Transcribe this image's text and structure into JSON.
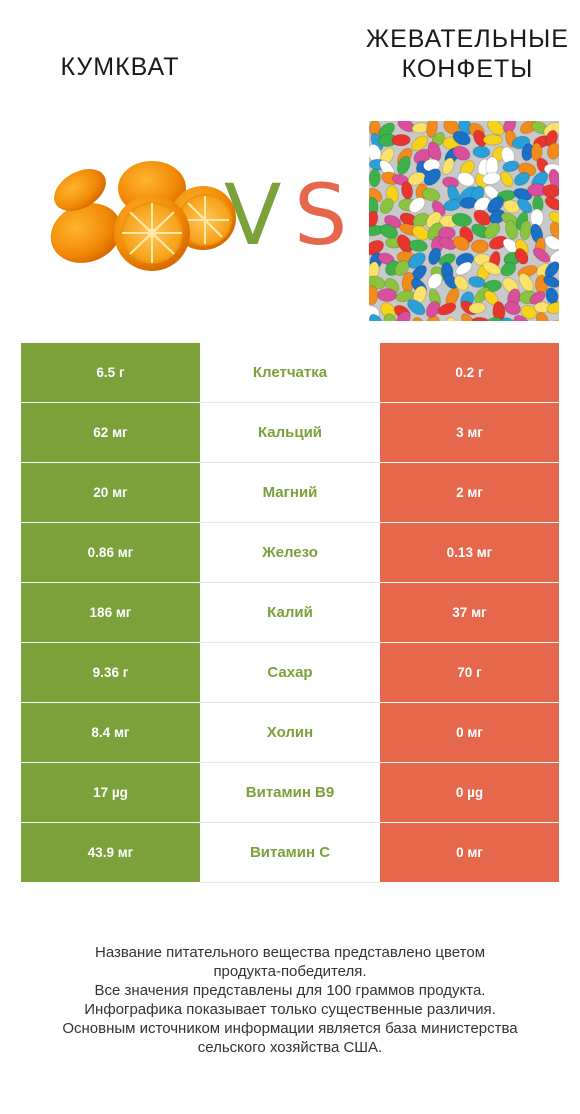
{
  "header": {
    "left_title": "КУМКВАТ",
    "right_title_line1": "ЖЕВАТЕЛЬНЫЕ",
    "right_title_line2": "КОНФЕТЫ",
    "vs_v": "V",
    "vs_s": "S"
  },
  "colors": {
    "left": "#7aa13a",
    "right": "#e5684d",
    "winner_text_left": "#7aa13a",
    "winner_text_right": "#e5684d"
  },
  "images": {
    "left": "kumquat-fruit-image",
    "right": "jelly-beans-image"
  },
  "rows": [
    {
      "left": "6.5 г",
      "nutrient": "Клетчатка",
      "right": "0.2 г",
      "winner": "left"
    },
    {
      "left": "62 мг",
      "nutrient": "Кальций",
      "right": "3 мг",
      "winner": "left"
    },
    {
      "left": "20 мг",
      "nutrient": "Магний",
      "right": "2 мг",
      "winner": "left"
    },
    {
      "left": "0.86 мг",
      "nutrient": "Железо",
      "right": "0.13 мг",
      "winner": "left"
    },
    {
      "left": "186 мг",
      "nutrient": "Калий",
      "right": "37 мг",
      "winner": "left"
    },
    {
      "left": "9.36 г",
      "nutrient": "Сахар",
      "right": "70 г",
      "winner": "left"
    },
    {
      "left": "8.4 мг",
      "nutrient": "Холин",
      "right": "0 мг",
      "winner": "left"
    },
    {
      "left": "17 µg",
      "nutrient": "Витамин B9",
      "right": "0 µg",
      "winner": "left"
    },
    {
      "left": "43.9 мг",
      "nutrient": "Витамин C",
      "right": "0 мг",
      "winner": "left"
    }
  ],
  "footer": {
    "line1": "Название питательного вещества представлено цветом",
    "line2": "продукта-победителя.",
    "line3": "Все значения представлены для 100 граммов продукта.",
    "line4": "Инфографика показывает только существенные различия.",
    "line5": "Основным источником информации является база министерства",
    "line6": "сельского хозяйства США."
  }
}
